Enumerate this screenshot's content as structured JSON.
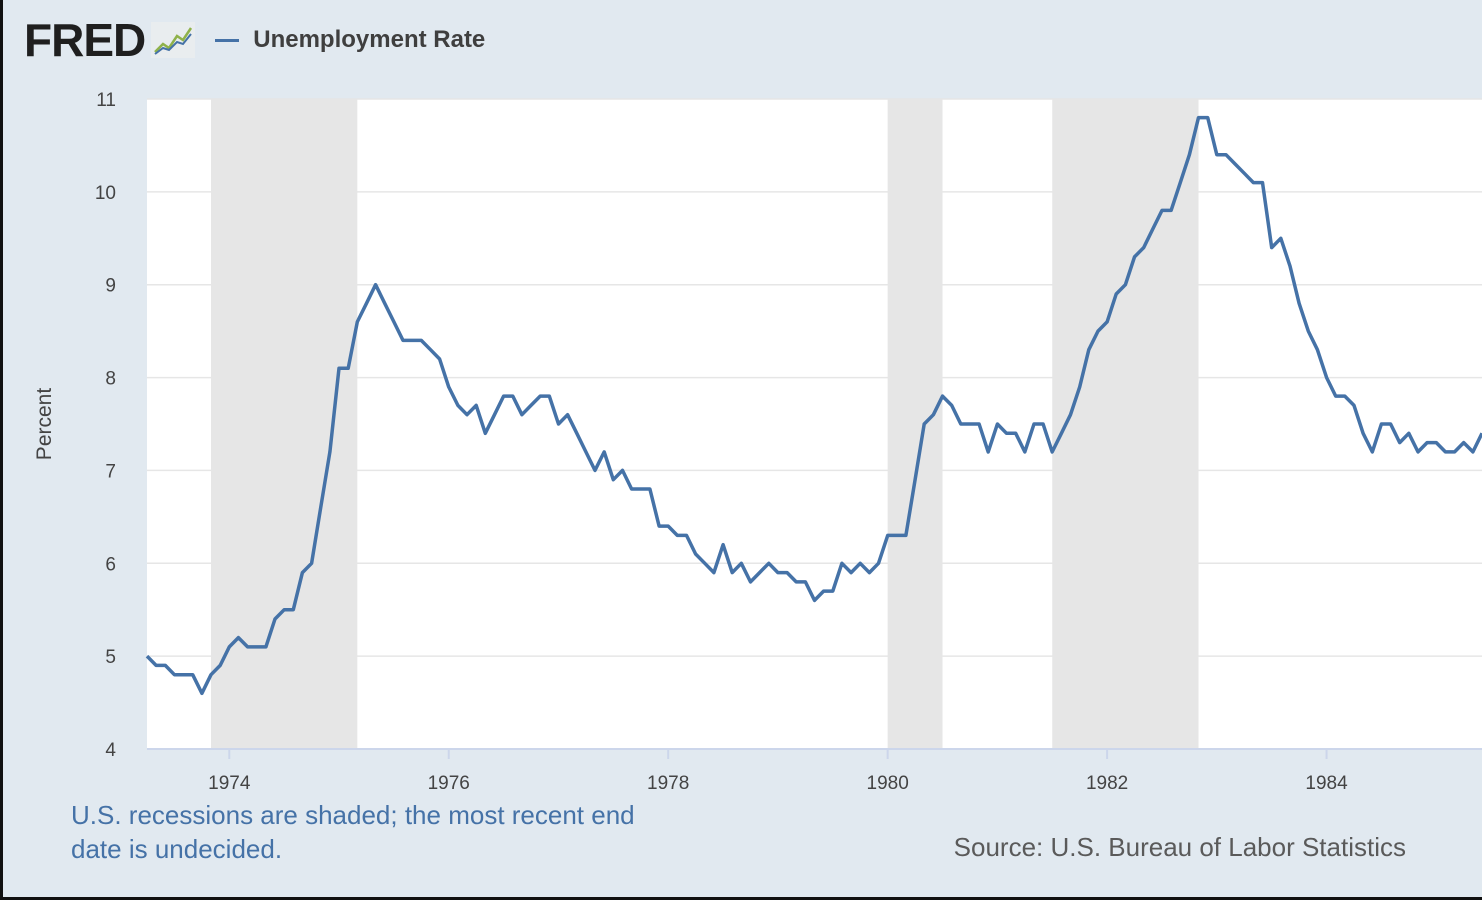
{
  "header": {
    "logo_text": "FRED",
    "logo_icon": "line-graph-icon",
    "legend_label": "Unemployment Rate"
  },
  "footer": {
    "note": "U.S. recessions are shaded; the most recent end date is undecided.",
    "source": "Source: U.S. Bureau of Labor Statistics"
  },
  "colors": {
    "background": "#e1e9f0",
    "plot_background": "#ffffff",
    "series_line": "#4572a7",
    "recession_shade": "#e6e6e6",
    "gridline": "#e6e6e6"
  },
  "chart_data": {
    "type": "line",
    "title": "",
    "xlabel": "",
    "ylabel": "Percent",
    "ylim": [
      4,
      11
    ],
    "yticks": [
      4,
      5,
      6,
      7,
      8,
      9,
      10,
      11
    ],
    "xlim": [
      "1973-04",
      "1985-06"
    ],
    "xticks": [
      "1974",
      "1976",
      "1978",
      "1980",
      "1982",
      "1984"
    ],
    "grid": true,
    "legend_position": "top",
    "recessions": [
      {
        "start": "1973-11",
        "end": "1975-03"
      },
      {
        "start": "1980-01",
        "end": "1980-07"
      },
      {
        "start": "1981-07",
        "end": "1982-11"
      }
    ],
    "series": [
      {
        "name": "Unemployment Rate",
        "x": [
          "1973-04",
          "1973-05",
          "1973-06",
          "1973-07",
          "1973-08",
          "1973-09",
          "1973-10",
          "1973-11",
          "1973-12",
          "1974-01",
          "1974-02",
          "1974-03",
          "1974-04",
          "1974-05",
          "1974-06",
          "1974-07",
          "1974-08",
          "1974-09",
          "1974-10",
          "1974-11",
          "1974-12",
          "1975-01",
          "1975-02",
          "1975-03",
          "1975-04",
          "1975-05",
          "1975-06",
          "1975-07",
          "1975-08",
          "1975-09",
          "1975-10",
          "1975-11",
          "1975-12",
          "1976-01",
          "1976-02",
          "1976-03",
          "1976-04",
          "1976-05",
          "1976-06",
          "1976-07",
          "1976-08",
          "1976-09",
          "1976-10",
          "1976-11",
          "1976-12",
          "1977-01",
          "1977-02",
          "1977-03",
          "1977-04",
          "1977-05",
          "1977-06",
          "1977-07",
          "1977-08",
          "1977-09",
          "1977-10",
          "1977-11",
          "1977-12",
          "1978-01",
          "1978-02",
          "1978-03",
          "1978-04",
          "1978-05",
          "1978-06",
          "1978-07",
          "1978-08",
          "1978-09",
          "1978-10",
          "1978-11",
          "1978-12",
          "1979-01",
          "1979-02",
          "1979-03",
          "1979-04",
          "1979-05",
          "1979-06",
          "1979-07",
          "1979-08",
          "1979-09",
          "1979-10",
          "1979-11",
          "1979-12",
          "1980-01",
          "1980-02",
          "1980-03",
          "1980-04",
          "1980-05",
          "1980-06",
          "1980-07",
          "1980-08",
          "1980-09",
          "1980-10",
          "1980-11",
          "1980-12",
          "1981-01",
          "1981-02",
          "1981-03",
          "1981-04",
          "1981-05",
          "1981-06",
          "1981-07",
          "1981-08",
          "1981-09",
          "1981-10",
          "1981-11",
          "1981-12",
          "1982-01",
          "1982-02",
          "1982-03",
          "1982-04",
          "1982-05",
          "1982-06",
          "1982-07",
          "1982-08",
          "1982-09",
          "1982-10",
          "1982-11",
          "1982-12",
          "1983-01",
          "1983-02",
          "1983-03",
          "1983-04",
          "1983-05",
          "1983-06",
          "1983-07",
          "1983-08",
          "1983-09",
          "1983-10",
          "1983-11",
          "1983-12",
          "1984-01",
          "1984-02",
          "1984-03",
          "1984-04",
          "1984-05",
          "1984-06",
          "1984-07",
          "1984-08",
          "1984-09",
          "1984-10",
          "1984-11",
          "1984-12",
          "1985-01",
          "1985-02",
          "1985-03",
          "1985-04",
          "1985-05",
          "1985-06"
        ],
        "values": [
          5.0,
          4.9,
          4.9,
          4.8,
          4.8,
          4.8,
          4.6,
          4.8,
          4.9,
          5.1,
          5.2,
          5.1,
          5.1,
          5.1,
          5.4,
          5.5,
          5.5,
          5.9,
          6.0,
          6.6,
          7.2,
          8.1,
          8.1,
          8.6,
          8.8,
          9.0,
          8.8,
          8.6,
          8.4,
          8.4,
          8.4,
          8.3,
          8.2,
          7.9,
          7.7,
          7.6,
          7.7,
          7.4,
          7.6,
          7.8,
          7.8,
          7.6,
          7.7,
          7.8,
          7.8,
          7.5,
          7.6,
          7.4,
          7.2,
          7.0,
          7.2,
          6.9,
          7.0,
          6.8,
          6.8,
          6.8,
          6.4,
          6.4,
          6.3,
          6.3,
          6.1,
          6.0,
          5.9,
          6.2,
          5.9,
          6.0,
          5.8,
          5.9,
          6.0,
          5.9,
          5.9,
          5.8,
          5.8,
          5.6,
          5.7,
          5.7,
          6.0,
          5.9,
          6.0,
          5.9,
          6.0,
          6.3,
          6.3,
          6.3,
          6.9,
          7.5,
          7.6,
          7.8,
          7.7,
          7.5,
          7.5,
          7.5,
          7.2,
          7.5,
          7.4,
          7.4,
          7.2,
          7.5,
          7.5,
          7.2,
          7.4,
          7.6,
          7.9,
          8.3,
          8.5,
          8.6,
          8.9,
          9.0,
          9.3,
          9.4,
          9.6,
          9.8,
          9.8,
          10.1,
          10.4,
          10.8,
          10.8,
          10.4,
          10.4,
          10.3,
          10.2,
          10.1,
          10.1,
          9.4,
          9.5,
          9.2,
          8.8,
          8.5,
          8.3,
          8.0,
          7.8,
          7.8,
          7.7,
          7.4,
          7.2,
          7.5,
          7.5,
          7.3,
          7.4,
          7.2,
          7.3,
          7.3,
          7.2,
          7.2,
          7.3,
          7.2,
          7.4
        ]
      }
    ]
  }
}
